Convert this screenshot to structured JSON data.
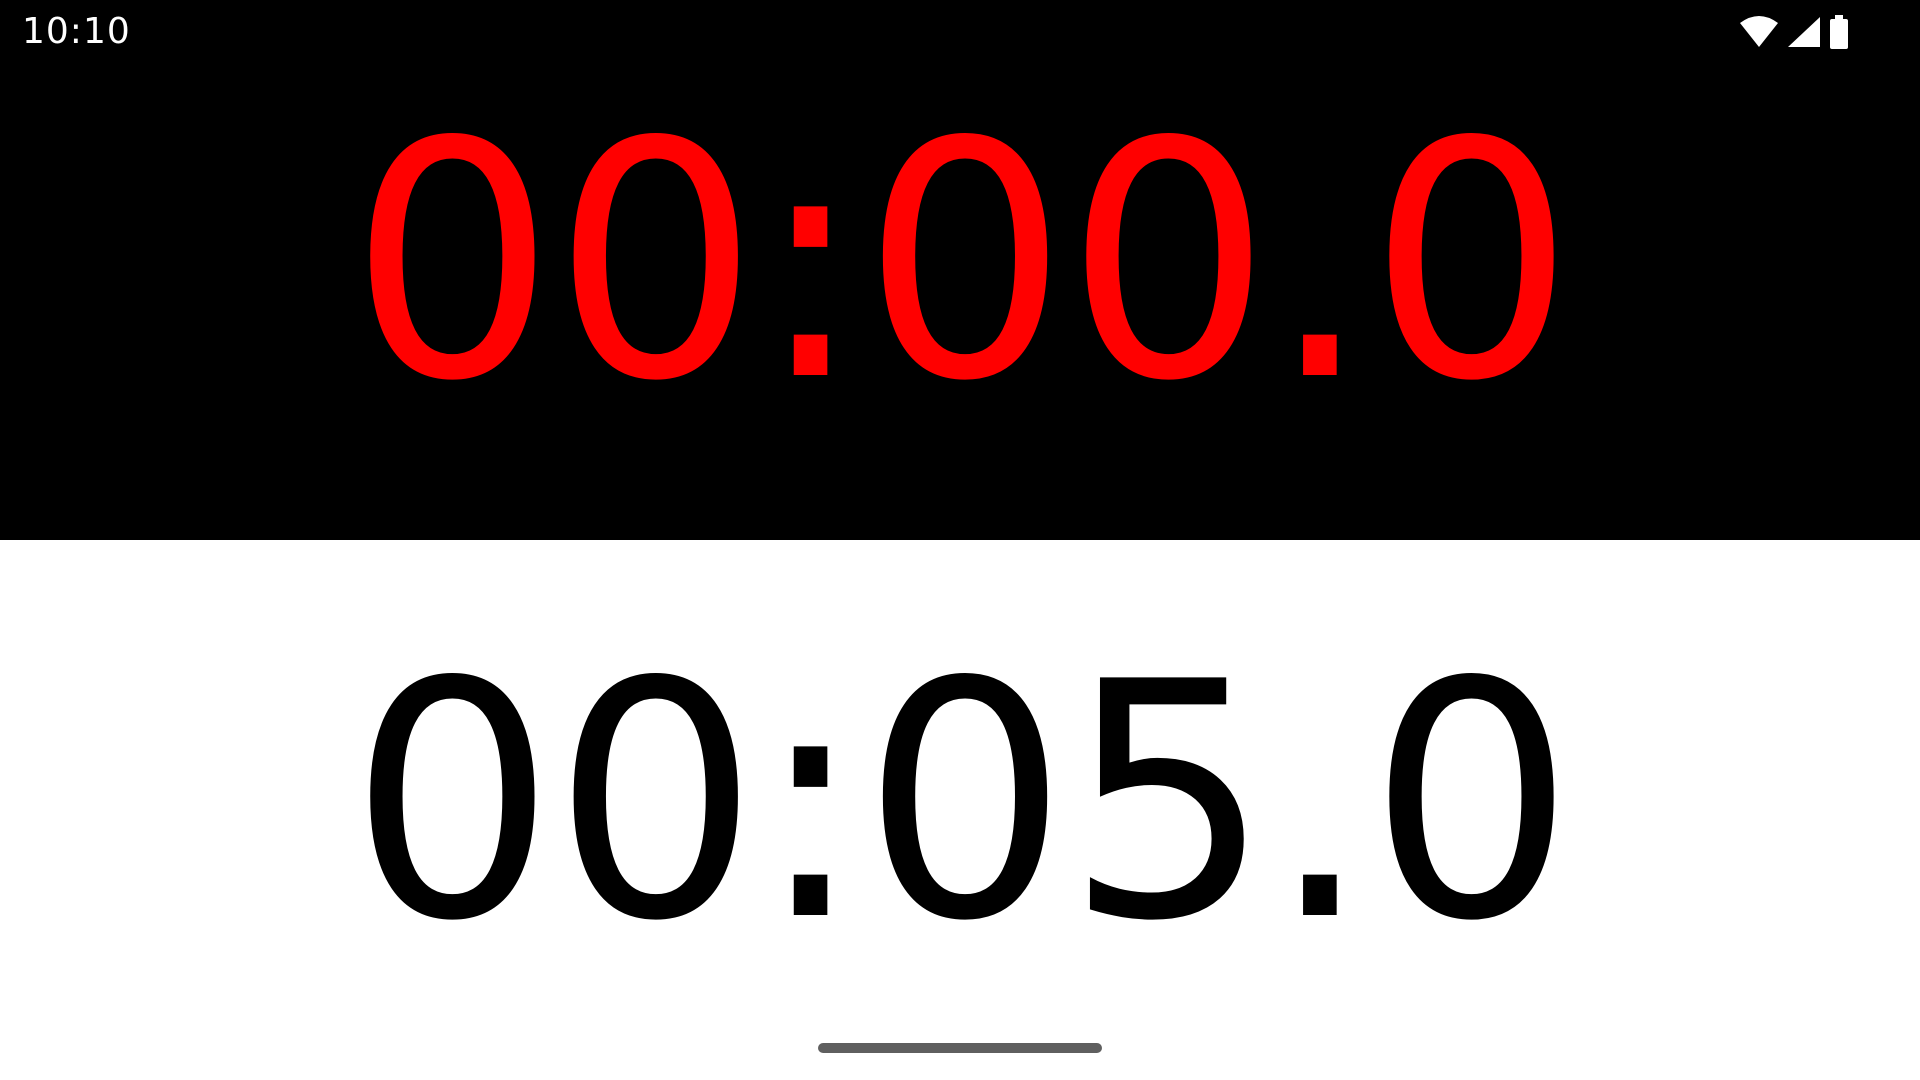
{
  "status_bar": {
    "time": "10:10",
    "icons": [
      "wifi-icon",
      "cell-signal-icon",
      "battery-icon"
    ]
  },
  "timers": {
    "primary": {
      "value": "00:00.0",
      "color": "#ff0000"
    },
    "secondary": {
      "value": "00:05.0",
      "color": "#000000"
    }
  },
  "colors": {
    "top_background": "#000000",
    "bottom_background": "#ffffff",
    "home_indicator": "#5f5f5f"
  }
}
